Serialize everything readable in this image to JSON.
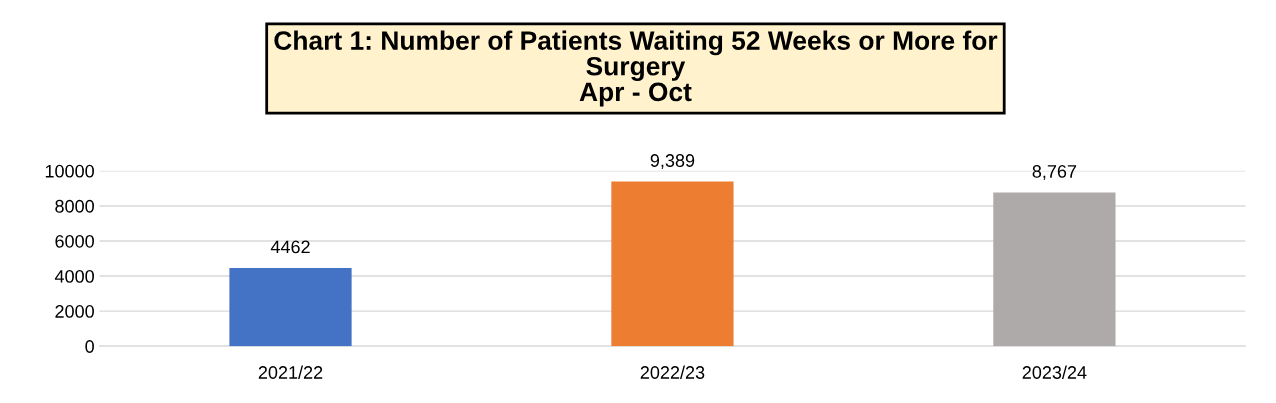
{
  "chart_data": {
    "type": "bar",
    "title": "Chart 1: Number of Patients Waiting 52 Weeks or More for\nSurgery\nApr - Oct",
    "categories": [
      "2021/22",
      "2022/23",
      "2023/24"
    ],
    "values": [
      4462,
      9389,
      8767
    ],
    "colors": [
      "#4472c4",
      "#ed7d31",
      "#aeaaaa"
    ],
    "value_labels": [
      "4462",
      "9,389",
      "8,767"
    ],
    "ylim": [
      0,
      10000
    ],
    "yticks": [
      0,
      2000,
      4000,
      6000,
      8000,
      10000
    ],
    "grid": "y"
  }
}
